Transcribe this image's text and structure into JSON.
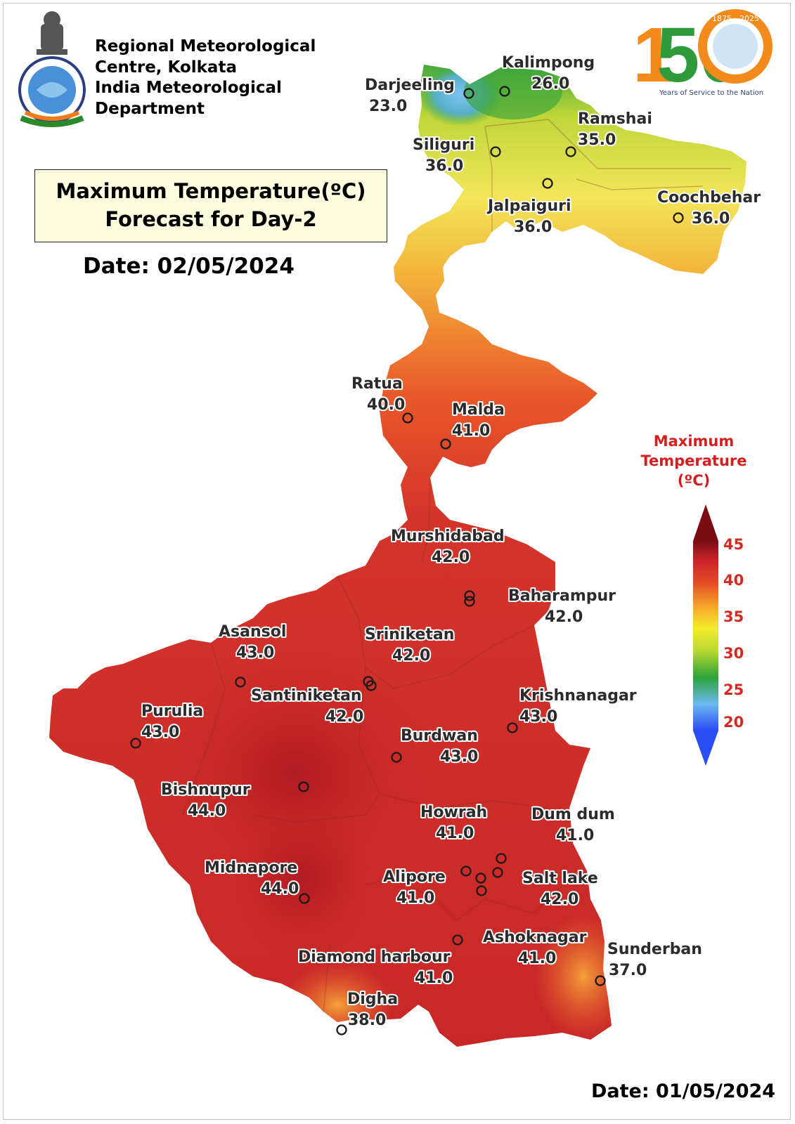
{
  "header": {
    "org_lines": [
      "Regional Meteorological",
      "Centre, Kolkata",
      "India Meteorological",
      "Department"
    ],
    "title_line1": "Maximum Temperature(ºC)",
    "title_line2": "Forecast for Day-2",
    "issue_date": "Date: 02/05/2024"
  },
  "footer": {
    "made_date": "Date: 01/05/2024"
  },
  "logo_150": {
    "number_1": "1",
    "number_50": "50",
    "year_start": "1875",
    "year_end": "2025",
    "tagline": "Years of Service to the Nation"
  },
  "legend": {
    "title_lines": [
      "Maximum",
      "Temperature",
      "(ºC)"
    ],
    "ticks": [
      "45",
      "40",
      "35",
      "30",
      "25",
      "20"
    ],
    "colors": [
      "#2a4cf5",
      "#6cb8f2",
      "#2aa33a",
      "#b9d830",
      "#f4ec2c",
      "#f7a22a",
      "#e34b26",
      "#c9222a",
      "#7a0d12"
    ]
  },
  "stations": [
    {
      "name": "Darjeeling",
      "temp": "23.0"
    },
    {
      "name": "Kalimpong",
      "temp": "26.0"
    },
    {
      "name": "Ramshai",
      "temp": "35.0"
    },
    {
      "name": "Siliguri",
      "temp": "36.0"
    },
    {
      "name": "Jalpaiguri",
      "temp": "36.0"
    },
    {
      "name": "Coochbehar",
      "temp": "36.0"
    },
    {
      "name": "Ratua",
      "temp": "40.0"
    },
    {
      "name": "Malda",
      "temp": "41.0"
    },
    {
      "name": "Murshidabad",
      "temp": "42.0"
    },
    {
      "name": "Baharampur",
      "temp": "42.0"
    },
    {
      "name": "Asansol",
      "temp": "43.0"
    },
    {
      "name": "Sriniketan",
      "temp": "42.0"
    },
    {
      "name": "Santiniketan",
      "temp": "42.0"
    },
    {
      "name": "Krishnanagar",
      "temp": "43.0"
    },
    {
      "name": "Purulia",
      "temp": "43.0"
    },
    {
      "name": "Burdwan",
      "temp": "43.0"
    },
    {
      "name": "Bishnupur",
      "temp": "44.0"
    },
    {
      "name": "Howrah",
      "temp": "41.0"
    },
    {
      "name": "Dum dum",
      "temp": "41.0"
    },
    {
      "name": "Midnapore",
      "temp": "44.0"
    },
    {
      "name": "Alipore",
      "temp": "41.0"
    },
    {
      "name": "Salt lake",
      "temp": "42.0"
    },
    {
      "name": "Ashoknagar",
      "temp": "41.0"
    },
    {
      "name": "Sunderban",
      "temp": "37.0"
    },
    {
      "name": "Diamond harbour",
      "temp": "41.0"
    },
    {
      "name": "Digha",
      "temp": "38.0"
    }
  ]
}
